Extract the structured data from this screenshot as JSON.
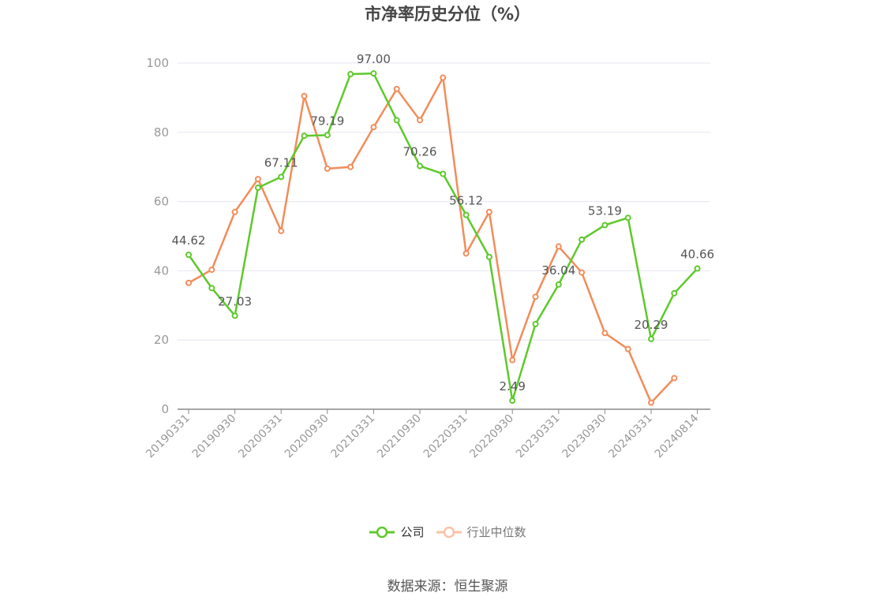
{
  "title": "市净率历史分位（%）",
  "source": "数据来源：恒生聚源",
  "colors": {
    "company": "#5ec92b",
    "industry": "#f28c5a",
    "grid": "#e4e6ef",
    "axis": "#8a8a8a",
    "tick": "#999999",
    "label": "#555555"
  },
  "legend": {
    "company": "公司",
    "industry": "行业中位数"
  },
  "chart_data": {
    "type": "line",
    "title": "市净率历史分位（%）",
    "ylim": [
      0,
      100
    ],
    "yticks": [
      "0",
      "20",
      "40",
      "60",
      "80",
      "100"
    ],
    "grid": true,
    "legend_position": "bottom",
    "x_tick_labels": [
      "20190331",
      "20190930",
      "20200331",
      "20200930",
      "20210331",
      "20210930",
      "20220331",
      "20220930",
      "20230331",
      "20230930",
      "20240331",
      "20240814"
    ],
    "x": [
      "20190331",
      "20190630",
      "20190930",
      "20191231",
      "20200331",
      "20200630",
      "20200930",
      "20201231",
      "20210331",
      "20210630",
      "20210930",
      "20211231",
      "20220331",
      "20220630",
      "20220930",
      "20221231",
      "20230331",
      "20230630",
      "20230930",
      "20231231",
      "20240331",
      "20240630",
      "20240814"
    ],
    "series": [
      {
        "name": "公司",
        "color": "#5ec92b",
        "values": [
          44.62,
          35.0,
          27.03,
          64.0,
          67.11,
          79.0,
          79.19,
          96.8,
          97.0,
          83.5,
          70.26,
          68.0,
          56.12,
          44.0,
          2.49,
          24.6,
          36.04,
          49.0,
          53.19,
          55.3,
          20.29,
          33.5,
          40.66
        ]
      },
      {
        "name": "行业中位数",
        "color": "#f28c5a",
        "values": [
          36.5,
          40.3,
          57.0,
          66.5,
          51.5,
          90.5,
          69.5,
          70.0,
          81.5,
          92.5,
          83.5,
          95.8,
          45.0,
          57.0,
          14.2,
          32.5,
          47.0,
          39.5,
          22.0,
          17.4,
          1.9,
          9.0,
          null
        ]
      }
    ],
    "annotations": [
      {
        "index": 0,
        "text": "44.62"
      },
      {
        "index": 2,
        "text": "27.03"
      },
      {
        "index": 4,
        "text": "67.11"
      },
      {
        "index": 6,
        "text": "79.19"
      },
      {
        "index": 8,
        "text": "97.00"
      },
      {
        "index": 10,
        "text": "70.26"
      },
      {
        "index": 12,
        "text": "56.12"
      },
      {
        "index": 14,
        "text": "2.49"
      },
      {
        "index": 16,
        "text": "36.04"
      },
      {
        "index": 18,
        "text": "53.19"
      },
      {
        "index": 20,
        "text": "20.29"
      },
      {
        "index": 22,
        "text": "40.66"
      }
    ]
  }
}
